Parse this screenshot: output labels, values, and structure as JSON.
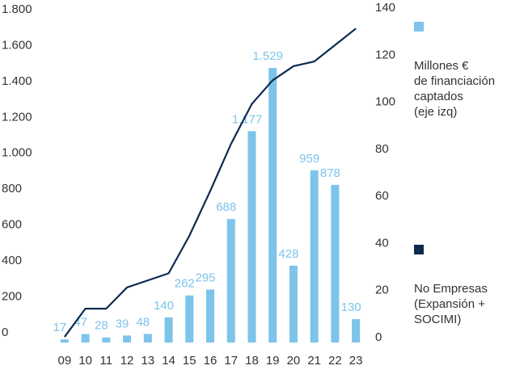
{
  "chart_data": {
    "type": "bar_line",
    "categories": [
      "09",
      "10",
      "11",
      "12",
      "13",
      "14",
      "15",
      "16",
      "17",
      "18",
      "19",
      "20",
      "21",
      "22",
      "23"
    ],
    "series": [
      {
        "name": "Millones €\nde financiación\ncaptados\n(eje izq)",
        "color": "#7cc4ea",
        "values": [
          17,
          47,
          28,
          39,
          48,
          140,
          262,
          295,
          688,
          1177,
          1529,
          428,
          959,
          878,
          130
        ],
        "value_labels": [
          "17",
          "47",
          "28",
          "39",
          "48",
          "140",
          "262",
          "295",
          "688",
          "1.177",
          "1.529",
          "428",
          "959",
          "878",
          "130"
        ]
      },
      {
        "name": "No Empresas\n(Expansión +\nSOCIMI)",
        "color": "#0d2a4f",
        "axis": "y2",
        "values": [
          1,
          13,
          13,
          22,
          25,
          28,
          44,
          63,
          83,
          100,
          110,
          116,
          118,
          125,
          132
        ]
      }
    ],
    "ylim": [
      0,
      1800
    ],
    "yticks": [
      0,
      200,
      400,
      600,
      800,
      {
        "value": 1000,
        "label": "1.000"
      },
      {
        "value": 1200,
        "label": "1.200"
      },
      {
        "value": 1400,
        "label": "1.400"
      },
      {
        "value": 1600,
        "label": "1.600"
      },
      {
        "value": 1800,
        "label": "1.800"
      }
    ],
    "y2lim": [
      0,
      140
    ],
    "y2ticks": [
      0,
      20,
      40,
      60,
      80,
      100,
      120,
      140
    ]
  }
}
